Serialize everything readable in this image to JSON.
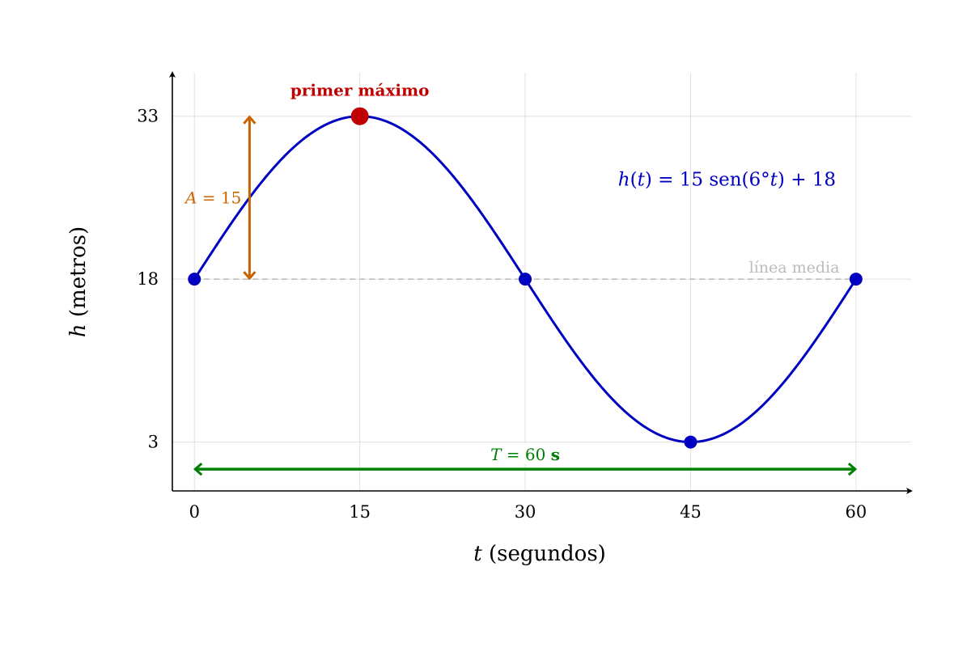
{
  "chart_data": {
    "type": "line",
    "xlabel_var": "t",
    "xlabel_unit": " (segundos)",
    "ylabel_var": "h",
    "ylabel_unit": " (metros)",
    "xlim": [
      -2,
      65
    ],
    "ylim": [
      -1.5,
      37
    ],
    "x_ticks": [
      "0",
      "15",
      "30",
      "45",
      "60"
    ],
    "x_tick_values": [
      0,
      15,
      30,
      45,
      60
    ],
    "y_ticks": [
      "3",
      "18",
      "33"
    ],
    "y_tick_values": [
      3,
      18,
      33
    ],
    "grid": true,
    "curve": {
      "amplitude": 15,
      "midline": 18,
      "deg_per_second": 6,
      "t_start": 0,
      "t_end": 60,
      "color": "#0000c0"
    },
    "points": [
      {
        "x": 0,
        "y": 18
      },
      {
        "x": 15,
        "y": 33,
        "highlight": true
      },
      {
        "x": 30,
        "y": 18
      },
      {
        "x": 45,
        "y": 3
      },
      {
        "x": 60,
        "y": 18
      }
    ],
    "annotations": {
      "formula": "h(t) = 15 sen(6°t) + 18",
      "formula_parts": {
        "h": "h",
        "open": "(",
        "t": "t",
        "close": ")",
        "eq": " = 15 sen(6",
        "deg": "°",
        "t2": "t",
        "tail": ") + 18"
      },
      "max_label": "primer máximo",
      "midline_label": "línea media",
      "amplitude_label": "A = 15",
      "amplitude_parts": {
        "var": "A",
        "rest": " = 15"
      },
      "period_label": "T = 60 s",
      "period_parts": {
        "var": "T",
        "num": " = 60 ",
        "unit": "s"
      }
    },
    "colors": {
      "curve": "#0000c0",
      "highlight": "#c00000",
      "amplitude": "#c86400",
      "period": "#008000",
      "midline": "#aaaaaa",
      "midline_text": "#bbbbbb",
      "grid": "#e0e0e0",
      "axis": "#000000"
    }
  }
}
